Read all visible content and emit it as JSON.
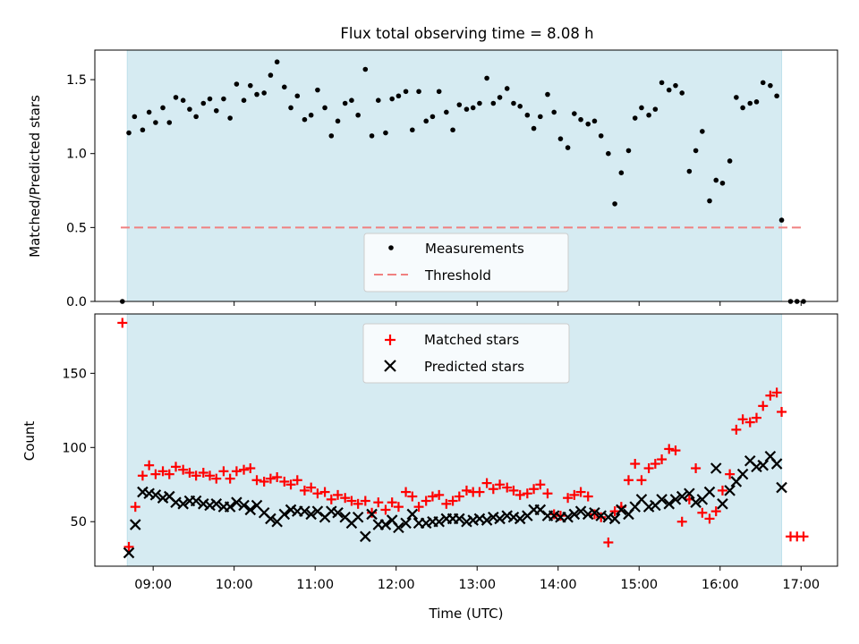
{
  "chart_data": [
    {
      "type": "scatter",
      "title": "Flux total observing time = 8.08 h",
      "xlabel": "",
      "ylabel": "Matched/Predicted stars",
      "xlim": [
        8.28,
        17.45
      ],
      "ylim": [
        0.0,
        1.7
      ],
      "yticks": [
        0.0,
        0.5,
        1.0,
        1.5
      ],
      "ytick_labels": [
        "0.0",
        "0.5",
        "1.0",
        "1.5"
      ],
      "span": {
        "x0": 8.68,
        "x1": 16.76,
        "color": "#add8e6"
      },
      "threshold": {
        "label": "Threshold",
        "value": 0.5,
        "x0": 8.6,
        "x1": 17.05,
        "color": "#f08080"
      },
      "legend": {
        "position": "lower-center",
        "entries": [
          "Measurements",
          "Threshold"
        ]
      },
      "series": [
        {
          "name": "Measurements",
          "marker": "dot",
          "color": "#000000",
          "x": [
            8.62,
            8.7,
            8.77,
            8.87,
            8.95,
            9.03,
            9.12,
            9.2,
            9.28,
            9.37,
            9.45,
            9.53,
            9.62,
            9.7,
            9.78,
            9.87,
            9.95,
            10.03,
            10.12,
            10.2,
            10.28,
            10.37,
            10.45,
            10.53,
            10.62,
            10.7,
            10.78,
            10.87,
            10.95,
            11.03,
            11.12,
            11.2,
            11.28,
            11.37,
            11.45,
            11.53,
            11.62,
            11.7,
            11.78,
            11.87,
            11.95,
            12.03,
            12.12,
            12.2,
            12.28,
            12.37,
            12.45,
            12.53,
            12.62,
            12.7,
            12.78,
            12.87,
            12.95,
            13.03,
            13.12,
            13.2,
            13.28,
            13.37,
            13.45,
            13.53,
            13.62,
            13.7,
            13.78,
            13.87,
            13.95,
            14.03,
            14.12,
            14.2,
            14.28,
            14.37,
            14.45,
            14.53,
            14.62,
            14.7,
            14.78,
            14.87,
            14.95,
            15.03,
            15.12,
            15.2,
            15.28,
            15.37,
            15.45,
            15.53,
            15.62,
            15.7,
            15.78,
            15.87,
            15.95,
            16.03,
            16.12,
            16.2,
            16.28,
            16.37,
            16.45,
            16.53,
            16.62,
            16.7,
            16.76,
            16.87,
            16.95,
            17.03
          ],
          "y": [
            0.0,
            1.14,
            1.25,
            1.16,
            1.28,
            1.21,
            1.31,
            1.21,
            1.38,
            1.36,
            1.3,
            1.25,
            1.34,
            1.37,
            1.29,
            1.37,
            1.24,
            1.47,
            1.36,
            1.46,
            1.4,
            1.41,
            1.53,
            1.62,
            1.45,
            1.31,
            1.39,
            1.23,
            1.26,
            1.43,
            1.31,
            1.12,
            1.22,
            1.34,
            1.36,
            1.26,
            1.57,
            1.12,
            1.36,
            1.14,
            1.37,
            1.39,
            1.42,
            1.16,
            1.42,
            1.22,
            1.25,
            1.42,
            1.28,
            1.16,
            1.33,
            1.3,
            1.31,
            1.34,
            1.51,
            1.34,
            1.38,
            1.44,
            1.34,
            1.32,
            1.26,
            1.17,
            1.25,
            1.4,
            1.28,
            1.1,
            1.04,
            1.27,
            1.23,
            1.2,
            1.22,
            1.12,
            1.0,
            0.66,
            0.87,
            1.02,
            1.24,
            1.31,
            1.26,
            1.3,
            1.48,
            1.43,
            1.46,
            1.41,
            0.88,
            1.02,
            1.15,
            0.68,
            0.82,
            0.8,
            0.95,
            1.38,
            1.31,
            1.34,
            1.35,
            1.48,
            1.46,
            1.39,
            0.55,
            0.0,
            0.0,
            0.0
          ]
        }
      ]
    },
    {
      "type": "scatter",
      "title": "",
      "xlabel": "Time (UTC)",
      "ylabel": "Count",
      "xlim": [
        8.28,
        17.45
      ],
      "ylim": [
        20,
        190
      ],
      "xticks": [
        9,
        10,
        11,
        12,
        13,
        14,
        15,
        16,
        17
      ],
      "xtick_labels": [
        "09:00",
        "10:00",
        "11:00",
        "12:00",
        "13:00",
        "14:00",
        "15:00",
        "16:00",
        "17:00"
      ],
      "yticks": [
        50,
        100,
        150
      ],
      "ytick_labels": [
        "50",
        "100",
        "150"
      ],
      "span": {
        "x0": 8.68,
        "x1": 16.76,
        "color": "#add8e6"
      },
      "legend": {
        "position": "top-center",
        "entries": [
          "Matched stars",
          "Predicted stars"
        ]
      },
      "series": [
        {
          "name": "Matched stars",
          "marker": "plus",
          "color": "#ff0000",
          "x": [
            8.62,
            8.7,
            8.78,
            8.87,
            8.95,
            9.03,
            9.12,
            9.2,
            9.28,
            9.37,
            9.45,
            9.53,
            9.62,
            9.7,
            9.78,
            9.87,
            9.95,
            10.03,
            10.12,
            10.2,
            10.28,
            10.37,
            10.45,
            10.53,
            10.62,
            10.7,
            10.78,
            10.87,
            10.95,
            11.03,
            11.12,
            11.2,
            11.28,
            11.37,
            11.45,
            11.53,
            11.62,
            11.7,
            11.78,
            11.87,
            11.95,
            12.03,
            12.12,
            12.2,
            12.28,
            12.37,
            12.45,
            12.53,
            12.62,
            12.7,
            12.78,
            12.87,
            12.95,
            13.03,
            13.12,
            13.2,
            13.28,
            13.37,
            13.45,
            13.53,
            13.62,
            13.7,
            13.78,
            13.87,
            13.95,
            14.03,
            14.12,
            14.2,
            14.28,
            14.37,
            14.45,
            14.53,
            14.62,
            14.7,
            14.78,
            14.87,
            14.95,
            15.03,
            15.12,
            15.2,
            15.28,
            15.37,
            15.45,
            15.53,
            15.62,
            15.7,
            15.78,
            15.87,
            15.95,
            16.03,
            16.12,
            16.2,
            16.28,
            16.37,
            16.45,
            16.53,
            16.62,
            16.7,
            16.76,
            16.87,
            16.95,
            17.03
          ],
          "y": [
            184,
            33,
            60,
            81,
            88,
            82,
            84,
            82,
            87,
            85,
            83,
            81,
            83,
            81,
            79,
            84,
            79,
            84,
            85,
            86,
            78,
            77,
            79,
            80,
            77,
            75,
            78,
            71,
            73,
            69,
            70,
            65,
            68,
            66,
            64,
            62,
            64,
            56,
            63,
            58,
            63,
            60,
            70,
            67,
            60,
            64,
            67,
            68,
            62,
            64,
            67,
            71,
            70,
            70,
            76,
            72,
            75,
            73,
            71,
            68,
            69,
            72,
            75,
            69,
            55,
            54,
            66,
            68,
            70,
            67,
            55,
            53,
            36,
            57,
            60,
            78,
            89,
            78,
            86,
            89,
            92,
            99,
            98,
            50,
            65,
            86,
            56,
            52,
            57,
            71,
            82,
            112,
            119,
            117,
            120,
            128,
            135,
            137,
            124,
            40,
            40,
            40
          ]
        },
        {
          "name": "Predicted stars",
          "marker": "x",
          "color": "#000000",
          "x": [
            8.7,
            8.78,
            8.87,
            8.95,
            9.03,
            9.12,
            9.2,
            9.28,
            9.37,
            9.45,
            9.53,
            9.62,
            9.7,
            9.78,
            9.87,
            9.95,
            10.03,
            10.12,
            10.2,
            10.28,
            10.37,
            10.45,
            10.53,
            10.62,
            10.7,
            10.78,
            10.87,
            10.95,
            11.03,
            11.12,
            11.2,
            11.28,
            11.37,
            11.45,
            11.53,
            11.62,
            11.7,
            11.78,
            11.87,
            11.95,
            12.03,
            12.12,
            12.2,
            12.28,
            12.37,
            12.45,
            12.53,
            12.62,
            12.7,
            12.78,
            12.87,
            12.95,
            13.03,
            13.12,
            13.2,
            13.28,
            13.37,
            13.45,
            13.53,
            13.62,
            13.7,
            13.78,
            13.87,
            13.95,
            14.03,
            14.12,
            14.2,
            14.28,
            14.37,
            14.45,
            14.53,
            14.62,
            14.7,
            14.78,
            14.87,
            14.95,
            15.03,
            15.12,
            15.2,
            15.28,
            15.37,
            15.45,
            15.53,
            15.62,
            15.7,
            15.78,
            15.87,
            15.95,
            16.03,
            16.12,
            16.2,
            16.28,
            16.37,
            16.45,
            16.53,
            16.62,
            16.7,
            16.76
          ],
          "y": [
            29,
            48,
            70,
            69,
            68,
            66,
            67,
            63,
            62,
            64,
            64,
            62,
            61,
            62,
            60,
            60,
            63,
            61,
            58,
            61,
            56,
            52,
            50,
            55,
            58,
            57,
            57,
            55,
            57,
            53,
            57,
            56,
            53,
            49,
            53,
            40,
            55,
            48,
            48,
            51,
            46,
            49,
            55,
            49,
            49,
            50,
            50,
            52,
            52,
            52,
            50,
            51,
            52,
            51,
            53,
            52,
            54,
            53,
            52,
            54,
            58,
            58,
            54,
            54,
            53,
            53,
            55,
            57,
            55,
            56,
            54,
            53,
            52,
            58,
            55,
            60,
            65,
            60,
            61,
            65,
            62,
            65,
            67,
            69,
            63,
            65,
            70,
            86,
            62,
            71,
            77,
            82,
            91,
            87,
            88,
            94,
            89,
            73
          ]
        }
      ]
    }
  ]
}
